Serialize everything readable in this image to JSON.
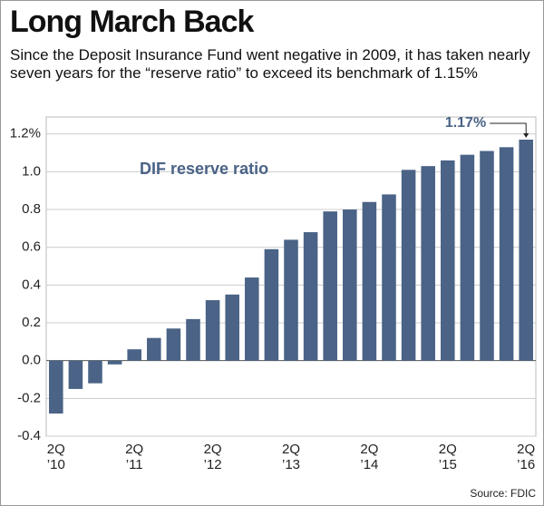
{
  "chart_data": {
    "type": "bar",
    "title": "Long March Back",
    "subtitle": "Since the Deposit Insurance Fund went negative in 2009, it has taken nearly seven years for the “reserve ratio” to exceed its benchmark of 1.15%",
    "series_label": "DIF reserve ratio",
    "source": "Source: FDIC",
    "categories": [
      "2Q\n’10",
      null,
      null,
      null,
      "2Q\n’11",
      null,
      null,
      null,
      "2Q\n’12",
      null,
      null,
      null,
      "2Q\n’13",
      null,
      null,
      null,
      "2Q\n’14",
      null,
      null,
      null,
      "2Q\n’15",
      null,
      null,
      null,
      "2Q\n’16"
    ],
    "values": [
      -0.28,
      -0.15,
      -0.12,
      -0.02,
      0.06,
      0.12,
      0.17,
      0.22,
      0.32,
      0.35,
      0.44,
      0.59,
      0.64,
      0.68,
      0.79,
      0.8,
      0.84,
      0.88,
      1.01,
      1.03,
      1.06,
      1.09,
      1.11,
      1.13,
      1.17
    ],
    "value_labels": [
      null,
      null,
      null,
      null,
      null,
      null,
      null,
      null,
      null,
      null,
      null,
      null,
      null,
      null,
      null,
      null,
      null,
      null,
      null,
      null,
      null,
      null,
      null,
      null,
      "1.17%"
    ],
    "color": "#4a6386",
    "ylim": [
      -0.4,
      1.29
    ],
    "yticks": [
      -0.4,
      -0.2,
      {
        "value": 0,
        "label": "0.0"
      },
      0.2,
      0.4,
      0.6,
      0.8,
      {
        "value": 1,
        "label": "1.0"
      },
      {
        "value": 1.2,
        "label": "1.2%"
      }
    ],
    "grid": true
  }
}
